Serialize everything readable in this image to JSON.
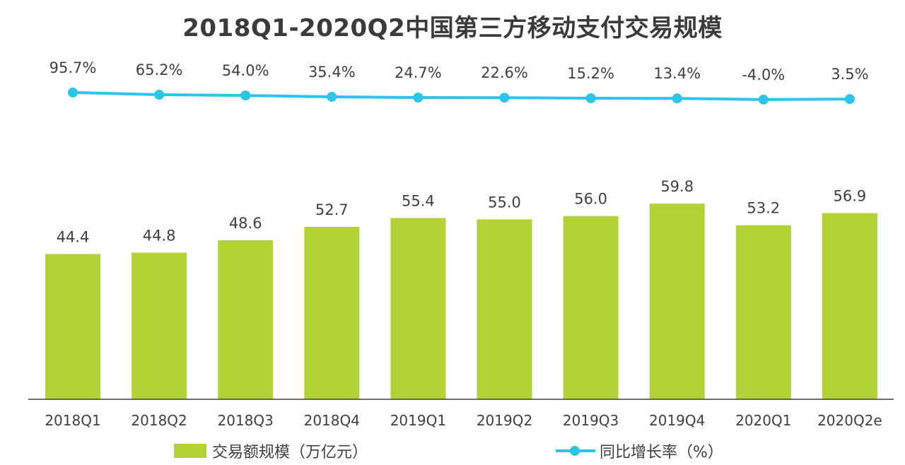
{
  "chart_data": {
    "type": "bar",
    "title": "2018Q1-2020Q2中国第三方移动支付交易规模",
    "categories": [
      "2018Q1",
      "2018Q2",
      "2018Q3",
      "2018Q4",
      "2019Q1",
      "2019Q2",
      "2019Q3",
      "2019Q4",
      "2020Q1",
      "2020Q2e"
    ],
    "series": [
      {
        "name": "交易额规模（万亿元）",
        "type": "bar",
        "values": [
          44.4,
          44.8,
          48.6,
          52.7,
          55.4,
          55.0,
          56.0,
          59.8,
          53.2,
          56.9
        ],
        "labels": [
          "44.4",
          "44.8",
          "48.6",
          "52.7",
          "55.4",
          "55.0",
          "56.0",
          "59.8",
          "53.2",
          "56.9"
        ]
      },
      {
        "name": "同比增长率（%）",
        "type": "line",
        "values": [
          95.7,
          65.2,
          54.0,
          35.4,
          24.7,
          22.6,
          15.2,
          13.4,
          -4.0,
          3.5
        ],
        "labels": [
          "95.7%",
          "65.2%",
          "54.0%",
          "35.4%",
          "24.7%",
          "22.6%",
          "15.2%",
          "13.4%",
          "-4.0%",
          "3.5%"
        ]
      }
    ],
    "xlabel": "",
    "ylabel": "",
    "ylim": [
      0,
      62
    ],
    "y2lim": [
      -100,
      100
    ],
    "grid": false,
    "legend": "bottom",
    "colors": {
      "bar": "#b2d235",
      "line": "#29c5ea",
      "text": "#404040",
      "axis": "#404040"
    }
  }
}
